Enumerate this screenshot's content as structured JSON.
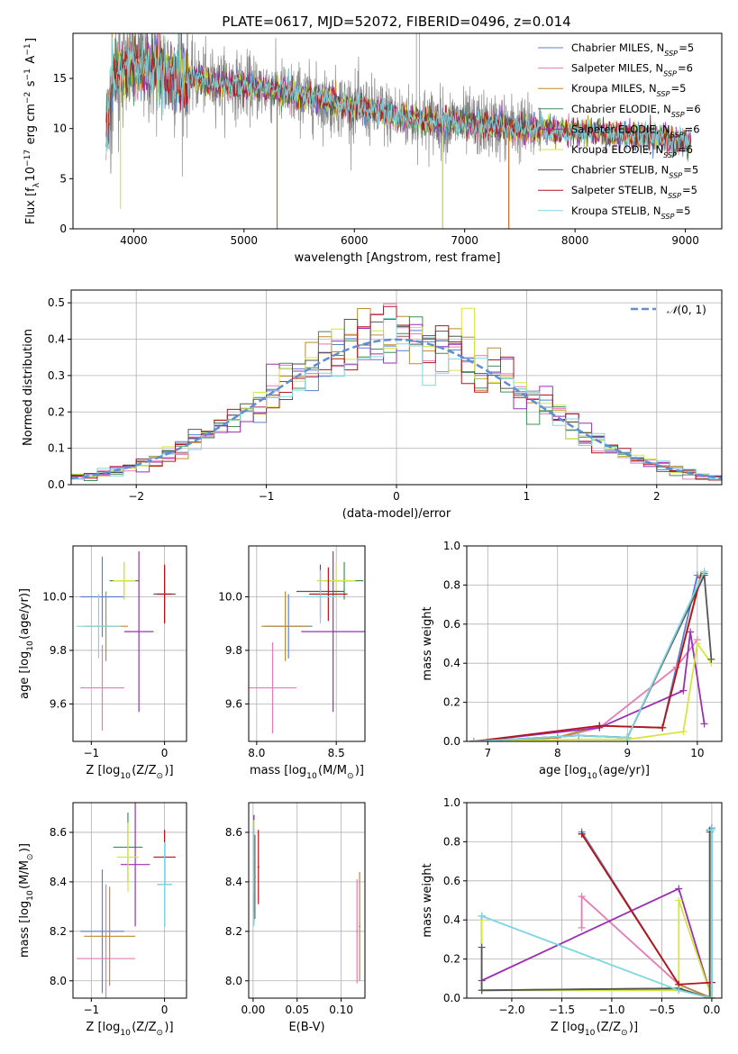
{
  "figure": {
    "title": "PLATE=0617, MJD=52072, FIBERID=0496, z=0.014"
  },
  "models": [
    {
      "name": "Chabrier MILES",
      "nssp": "5",
      "color": "#5b7fd1"
    },
    {
      "name": "Salpeter MILES",
      "nssp": "6",
      "color": "#e67ab4"
    },
    {
      "name": "Kroupa MILES",
      "nssp": "5",
      "color": "#c08a2e"
    },
    {
      "name": "Chabrier ELODIE",
      "nssp": "6",
      "color": "#3e8f5a"
    },
    {
      "name": "Salpeter ELODIE",
      "nssp": "6",
      "color": "#9a2fb3"
    },
    {
      "name": "Kroupa ELODIE",
      "nssp": "6",
      "color": "#d6e640"
    },
    {
      "name": "Chabrier STELIB",
      "nssp": "5",
      "color": "#555555"
    },
    {
      "name": "Salpeter STELIB",
      "nssp": "5",
      "color": "#b3151f"
    },
    {
      "name": "Kroupa STELIB",
      "nssp": "5",
      "color": "#7ed6e0"
    }
  ],
  "chart_data": [
    {
      "id": "spectrum",
      "type": "line",
      "xlabel": "wavelength [Angstrom, rest frame]",
      "ylabel": "Flux [f_λ 10^-17 erg cm^-2 s^-1 A^-1]",
      "ylabel_parts": {
        "a": "Flux [f",
        "b": "λ",
        "c": "10",
        "d": "−17",
        "e": " erg cm",
        "f": "−2",
        "g": " s",
        "h": "−1",
        "i": " A",
        "j": "−1",
        "k": "]"
      },
      "xlim": [
        3450,
        9330
      ],
      "ylim": [
        0,
        19.5
      ],
      "xticks": [
        4000,
        5000,
        6000,
        7000,
        8000,
        9000
      ],
      "yticks": [
        0,
        5,
        10,
        15
      ],
      "data_range": [
        3750,
        9050
      ],
      "continuum": [
        [
          3750,
          9
        ],
        [
          3800,
          15
        ],
        [
          3900,
          16
        ],
        [
          4000,
          16.5
        ],
        [
          4300,
          15.5
        ],
        [
          4800,
          14.5
        ],
        [
          5200,
          14
        ],
        [
          5600,
          13
        ],
        [
          6000,
          12.2
        ],
        [
          6500,
          11
        ],
        [
          7000,
          10.5
        ],
        [
          7500,
          10
        ],
        [
          8000,
          9.8
        ],
        [
          8500,
          9.4
        ],
        [
          9050,
          8.6
        ]
      ],
      "dips": [
        [
          3880,
          2
        ],
        [
          5300,
          0
        ],
        [
          6800,
          0
        ],
        [
          7400,
          0
        ]
      ],
      "spikes": [
        [
          6563,
          19.5
        ],
        [
          6590,
          19.5
        ]
      ],
      "legend_suffix": "N",
      "legend_sub": "SSP",
      "legend_position": "upper-right"
    },
    {
      "id": "residuals",
      "type": "histogram",
      "xlabel": "(data-model)/error",
      "ylabel": "Normed distribution",
      "xlim": [
        -2.5,
        2.5
      ],
      "ylim": [
        0,
        0.535
      ],
      "xticks": [
        -2,
        -1,
        0,
        1,
        2
      ],
      "yticks": [
        0.0,
        0.1,
        0.2,
        0.3,
        0.4,
        0.5
      ],
      "bin_width": 0.1,
      "reference": "N(0,1)",
      "legend_label": {
        "pre": "𝒩",
        "args": "(0, 1)"
      },
      "grid": true,
      "legend_position": "upper-right"
    },
    {
      "id": "age_vs_Z",
      "type": "errorbar",
      "xlabel": {
        "pre": "Z [log",
        "sub": "10",
        "mid": "(Z/Z",
        "sub2": "⊙",
        "post": ")]"
      },
      "ylabel": {
        "pre": "age  [log",
        "sub": "10",
        "post": "(age/yr)]"
      },
      "xlim": [
        -1.25,
        0.3
      ],
      "ylim": [
        9.46,
        10.19
      ],
      "xticks": [
        -1,
        0
      ],
      "yticks": [
        9.6,
        9.8,
        10.0
      ],
      "points": [
        {
          "x": -0.85,
          "y": 10.0,
          "xe": 0.3,
          "ye": 0.15
        },
        {
          "x": -0.85,
          "y": 9.66,
          "xe": 0.3,
          "ye": 0.16
        },
        {
          "x": -0.8,
          "y": 9.89,
          "xe": 0.3,
          "ye": 0.13
        },
        {
          "x": -0.55,
          "y": 10.06,
          "xe": 0.2,
          "ye": 0.07
        },
        {
          "x": -0.35,
          "y": 9.87,
          "xe": 0.2,
          "ye": 0.3
        },
        {
          "x": -0.55,
          "y": 10.06,
          "xe": 0.15,
          "ye": 0.07
        },
        {
          "x": 0.0,
          "y": 10.01,
          "xe": 0.15,
          "ye": 0.1
        },
        {
          "x": 0.0,
          "y": 10.01,
          "xe": 0.1,
          "ye": 0.11
        },
        {
          "x": -0.9,
          "y": 9.89,
          "xe": 0.3,
          "ye": 0.12
        }
      ]
    },
    {
      "id": "age_vs_mass",
      "type": "errorbar",
      "xlabel": {
        "pre": "mass [log",
        "sub": "10",
        "mid": "(M/M",
        "sub2": "⊙",
        "post": ")]"
      },
      "ylabel": "",
      "xlim": [
        7.95,
        8.68
      ],
      "ylim": [
        9.46,
        10.19
      ],
      "xticks": [
        8.0,
        8.5
      ],
      "yticks": [
        9.6,
        9.8,
        10.0
      ],
      "points": [
        {
          "x": 8.2,
          "y": 9.89,
          "xe": 0.15,
          "ye": 0.12
        },
        {
          "x": 8.1,
          "y": 9.66,
          "xe": 0.15,
          "ye": 0.17
        },
        {
          "x": 8.18,
          "y": 9.89,
          "xe": 0.15,
          "ye": 0.13
        },
        {
          "x": 8.55,
          "y": 10.06,
          "xe": 0.12,
          "ye": 0.07
        },
        {
          "x": 8.48,
          "y": 9.87,
          "xe": 0.2,
          "ye": 0.3
        },
        {
          "x": 8.5,
          "y": 10.06,
          "xe": 0.12,
          "ye": 0.07
        },
        {
          "x": 8.4,
          "y": 10.02,
          "xe": 0.15,
          "ye": 0.1
        },
        {
          "x": 8.45,
          "y": 10.01,
          "xe": 0.12,
          "ye": 0.1
        },
        {
          "x": 8.4,
          "y": 10.0,
          "xe": 0.1,
          "ye": 0.1
        }
      ]
    },
    {
      "id": "massweight_vs_age",
      "type": "line",
      "xlabel": {
        "pre": "age  [log",
        "sub": "10",
        "post": "(age/yr)]"
      },
      "ylabel": "mass weight",
      "xlim": [
        6.7,
        10.35
      ],
      "ylim": [
        0,
        1.0
      ],
      "xticks": [
        7,
        8,
        9,
        10
      ],
      "yticks": [
        0.0,
        0.2,
        0.4,
        0.6,
        0.8,
        1.0
      ],
      "grid": true,
      "series": [
        {
          "x": [
            6.8,
            8.0,
            8.6,
            9.5,
            10.0
          ],
          "y": [
            0.0,
            0.02,
            0.08,
            0.07,
            0.85
          ]
        },
        {
          "x": [
            6.8,
            8.0,
            8.6,
            9.7,
            10.0
          ],
          "y": [
            0.0,
            0.02,
            0.07,
            0.38,
            0.52
          ]
        },
        {
          "x": [
            6.8,
            8.0,
            8.6,
            9.5,
            10.05
          ],
          "y": [
            0.0,
            0.02,
            0.08,
            0.07,
            0.85
          ]
        },
        {
          "x": [
            6.8,
            8.3,
            9.0,
            10.1
          ],
          "y": [
            0.0,
            0.03,
            0.02,
            0.86
          ]
        },
        {
          "x": [
            6.8,
            8.6,
            9.8,
            9.9,
            10.1
          ],
          "y": [
            0.0,
            0.07,
            0.26,
            0.56,
            0.09
          ]
        },
        {
          "x": [
            6.8,
            8.3,
            9.0,
            9.8,
            10.0,
            10.2
          ],
          "y": [
            0.0,
            0.01,
            0.01,
            0.05,
            0.5,
            0.4
          ]
        },
        {
          "x": [
            6.8,
            8.3,
            9.0,
            10.1,
            10.2
          ],
          "y": [
            0.0,
            0.03,
            0.02,
            0.85,
            0.42
          ]
        },
        {
          "x": [
            6.8,
            8.6,
            9.5,
            10.05
          ],
          "y": [
            0.0,
            0.08,
            0.07,
            0.84
          ]
        },
        {
          "x": [
            6.8,
            8.3,
            9.0,
            10.1
          ],
          "y": [
            0.0,
            0.03,
            0.02,
            0.87
          ]
        }
      ]
    },
    {
      "id": "mass_vs_Z",
      "type": "errorbar",
      "xlabel": {
        "pre": "Z [log",
        "sub": "10",
        "mid": "(Z/Z",
        "sub2": "⊙",
        "post": ")]"
      },
      "ylabel": {
        "pre": "mass [log",
        "sub": "10",
        "mid": "(M/M",
        "sub2": "⊙",
        "post": ")]"
      },
      "xlim": [
        -1.25,
        0.3
      ],
      "ylim": [
        7.93,
        8.72
      ],
      "xticks": [
        -1,
        0
      ],
      "yticks": [
        8.0,
        8.2,
        8.4,
        8.6
      ],
      "points": [
        {
          "x": -0.85,
          "y": 8.2,
          "xe": 0.3,
          "ye": 0.25
        },
        {
          "x": -0.8,
          "y": 8.09,
          "xe": 0.4,
          "ye": 0.3
        },
        {
          "x": -0.75,
          "y": 8.18,
          "xe": 0.35,
          "ye": 0.2
        },
        {
          "x": -0.5,
          "y": 8.54,
          "xe": 0.2,
          "ye": 0.14
        },
        {
          "x": -0.4,
          "y": 8.47,
          "xe": 0.2,
          "ye": 0.25
        },
        {
          "x": -0.5,
          "y": 8.5,
          "xe": 0.15,
          "ye": 0.14
        },
        {
          "x": 0.0,
          "y": 8.39,
          "xe": 0.1,
          "ye": 0.17
        },
        {
          "x": 0.0,
          "y": 8.5,
          "xe": 0.15,
          "ye": 0.11
        },
        {
          "x": 0.0,
          "y": 8.39,
          "xe": 0.1,
          "ye": 0.17
        }
      ]
    },
    {
      "id": "mass_vs_EBV",
      "type": "errorbar",
      "xlabel": "E(B-V)",
      "ylabel": "",
      "xlim": [
        -0.005,
        0.127
      ],
      "ylim": [
        7.93,
        8.72
      ],
      "xticks": [
        0.0,
        0.05,
        0.1
      ],
      "xtick_labels": [
        "0.00",
        "0.05",
        "0.10"
      ],
      "yticks": [
        8.0,
        8.2,
        8.4,
        8.6
      ],
      "points": [
        {
          "x": 0.001,
          "y": 8.45,
          "xe": 0.001,
          "ye": 0.22
        },
        {
          "x": 0.118,
          "y": 8.2,
          "xe": 0.001,
          "ye": 0.21
        },
        {
          "x": 0.121,
          "y": 8.22,
          "xe": 0.001,
          "ye": 0.22
        },
        {
          "x": 0.001,
          "y": 8.53,
          "xe": 0.001,
          "ye": 0.14
        },
        {
          "x": 0.001,
          "y": 8.47,
          "xe": 0.001,
          "ye": 0.2
        },
        {
          "x": 0.001,
          "y": 8.5,
          "xe": 0.001,
          "ye": 0.15
        },
        {
          "x": 0.002,
          "y": 8.42,
          "xe": 0.001,
          "ye": 0.17
        },
        {
          "x": 0.006,
          "y": 8.46,
          "xe": 0.001,
          "ye": 0.15
        },
        {
          "x": 0.001,
          "y": 8.42,
          "xe": 0.001,
          "ye": 0.2
        }
      ]
    },
    {
      "id": "massweight_vs_Z",
      "type": "line",
      "xlabel": {
        "pre": "Z [log",
        "sub": "10",
        "mid": "(Z/Z",
        "sub2": "⊙",
        "post": ")]"
      },
      "ylabel": "mass weight",
      "xlim": [
        -2.45,
        0.1
      ],
      "ylim": [
        0,
        1.0
      ],
      "xticks": [
        -2.0,
        -1.5,
        -1.0,
        -0.5,
        0.0
      ],
      "xtick_labels": [
        "−2.0",
        "−1.5",
        "−1.0",
        "−0.5",
        "0.0"
      ],
      "yticks": [
        0.0,
        0.2,
        0.4,
        0.6,
        0.8,
        1.0
      ],
      "grid": true,
      "series": [
        {
          "x": [
            -1.3,
            -0.33,
            0.0,
            0.0
          ],
          "y": [
            0.85,
            0.07,
            0.0,
            0.87
          ]
        },
        {
          "x": [
            -1.3,
            -1.3,
            -0.33
          ],
          "y": [
            0.36,
            0.52,
            0.07
          ]
        },
        {
          "x": [
            -1.3,
            -0.33,
            0.0
          ],
          "y": [
            0.84,
            0.07,
            0.0
          ]
        },
        {
          "x": [
            -2.3,
            -2.3,
            -0.33,
            -0.02,
            -0.02
          ],
          "y": [
            0.42,
            0.04,
            0.05,
            0.0,
            0.86
          ]
        },
        {
          "x": [
            -2.3,
            -0.33,
            0.0
          ],
          "y": [
            0.09,
            0.56,
            0.0
          ]
        },
        {
          "x": [
            -2.3,
            -2.3,
            -0.33,
            -0.33,
            0.0
          ],
          "y": [
            0.4,
            0.04,
            0.04,
            0.5,
            0.0
          ]
        },
        {
          "x": [
            -2.3,
            -2.3,
            -0.33,
            -0.02,
            -0.02
          ],
          "y": [
            0.26,
            0.04,
            0.05,
            0.0,
            0.85
          ]
        },
        {
          "x": [
            -1.3,
            -0.33,
            0.0
          ],
          "y": [
            0.84,
            0.07,
            0.08
          ]
        },
        {
          "x": [
            -2.3,
            -0.33,
            0.0,
            0.0
          ],
          "y": [
            0.42,
            0.04,
            0.0,
            0.86
          ]
        }
      ]
    }
  ]
}
